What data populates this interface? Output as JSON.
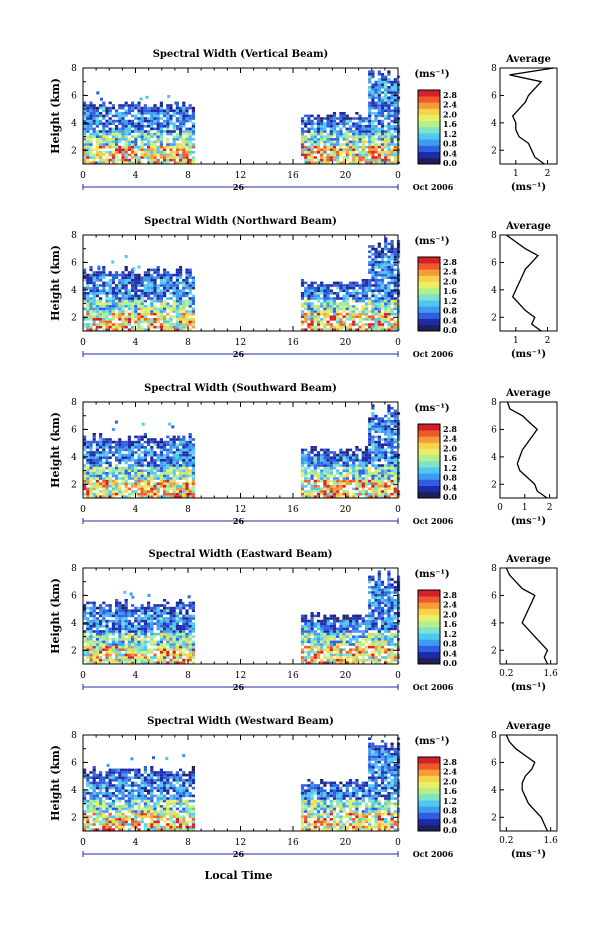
{
  "figure": {
    "bottom_xlabel": "Local Time",
    "units_label": "(ms⁻¹)",
    "date_label": "Oct 2006",
    "day_label": "26",
    "x_tick_labels": [
      "0",
      "4",
      "8",
      "12",
      "16",
      "20",
      "0"
    ],
    "y_tick_labels": [
      "2",
      "4",
      "6",
      "8"
    ],
    "ylabel": "Height (km)",
    "colorbar_ticks": [
      "2.8",
      "2.4",
      "2.0",
      "1.6",
      "1.2",
      "0.8",
      "0.4",
      "0.0"
    ],
    "avg_title": "Average",
    "avg_xlabel": "(ms⁻¹)"
  },
  "chart_data": [
    {
      "type": "heatmap",
      "title": "Spectral Width (Vertical Beam)",
      "xlabel": "",
      "ylabel": "Height (km)",
      "xlim_hours": [
        0,
        24
      ],
      "ylim_km": [
        1,
        8
      ],
      "colorbar_range": [
        0.0,
        3.0
      ],
      "data_segments_hours": [
        [
          0,
          8.4
        ],
        [
          16.6,
          24
        ]
      ],
      "mean_profile": {
        "title": "Average",
        "xtick_labels": [
          "1",
          "2"
        ],
        "xlim": [
          0.5,
          2.3
        ],
        "height_km": [
          1,
          1.5,
          2,
          2.5,
          3,
          3.5,
          4,
          4.5,
          5,
          5.5,
          6,
          6.5,
          7,
          7.5,
          8
        ],
        "width_ms": [
          1.9,
          1.6,
          1.5,
          1.4,
          1.1,
          1.0,
          1.0,
          0.9,
          1.1,
          1.3,
          1.4,
          1.6,
          1.8,
          0.8,
          2.2
        ]
      }
    },
    {
      "type": "heatmap",
      "title": "Spectral Width (Northward Beam)",
      "xlabel": "",
      "ylabel": "Height (km)",
      "xlim_hours": [
        0,
        24
      ],
      "ylim_km": [
        1,
        8
      ],
      "colorbar_range": [
        0.0,
        3.0
      ],
      "data_segments_hours": [
        [
          0,
          8.4
        ],
        [
          16.6,
          24
        ]
      ],
      "mean_profile": {
        "title": "Average",
        "xtick_labels": [
          "1",
          "2"
        ],
        "xlim": [
          0.5,
          2.3
        ],
        "height_km": [
          1,
          1.5,
          2,
          2.5,
          3,
          3.5,
          4,
          4.5,
          5,
          5.5,
          6,
          6.5,
          7,
          7.5,
          8
        ],
        "width_ms": [
          1.8,
          1.5,
          1.6,
          1.3,
          1.1,
          0.9,
          1.0,
          1.1,
          1.2,
          1.3,
          1.5,
          1.7,
          1.3,
          1.0,
          0.7
        ]
      }
    },
    {
      "type": "heatmap",
      "title": "Spectral Width (Southward Beam)",
      "xlabel": "",
      "ylabel": "Height (km)",
      "xlim_hours": [
        0,
        24
      ],
      "ylim_km": [
        1,
        8
      ],
      "colorbar_range": [
        0.0,
        3.0
      ],
      "data_segments_hours": [
        [
          0,
          8.4
        ],
        [
          16.6,
          24
        ]
      ],
      "mean_profile": {
        "title": "Average",
        "xtick_labels": [
          "0",
          "1",
          "2"
        ],
        "xlim": [
          0,
          2.3
        ],
        "height_km": [
          1,
          1.5,
          2,
          2.5,
          3,
          3.5,
          4,
          4.5,
          5,
          5.5,
          6,
          6.5,
          7,
          7.5,
          8
        ],
        "width_ms": [
          1.9,
          1.5,
          1.4,
          1.1,
          0.8,
          0.7,
          0.8,
          0.9,
          1.1,
          1.3,
          1.5,
          1.2,
          0.9,
          0.4,
          0.3
        ]
      }
    },
    {
      "type": "heatmap",
      "title": "Spectral Width (Eastward Beam)",
      "xlabel": "",
      "ylabel": "Height (km)",
      "xlim_hours": [
        0,
        24
      ],
      "ylim_km": [
        1,
        8
      ],
      "colorbar_range": [
        0.0,
        3.0
      ],
      "data_segments_hours": [
        [
          0,
          8.4
        ],
        [
          16.6,
          24
        ]
      ],
      "mean_profile": {
        "title": "Average",
        "xtick_labels": [
          "0.2",
          "1.6"
        ],
        "xlim": [
          0,
          1.8
        ],
        "height_km": [
          1,
          1.5,
          2,
          2.5,
          3,
          3.5,
          4,
          4.5,
          5,
          5.5,
          6,
          6.5,
          7,
          7.5,
          8
        ],
        "width_ms": [
          1.5,
          1.4,
          1.5,
          1.3,
          1.1,
          0.9,
          0.7,
          0.8,
          0.9,
          1.0,
          1.1,
          0.7,
          0.5,
          0.3,
          0.2
        ]
      }
    },
    {
      "type": "heatmap",
      "title": "Spectral Width (Westward Beam)",
      "xlabel": "Local Time",
      "ylabel": "Height (km)",
      "xlim_hours": [
        0,
        24
      ],
      "ylim_km": [
        1,
        8
      ],
      "colorbar_range": [
        0.0,
        3.0
      ],
      "data_segments_hours": [
        [
          0,
          8.4
        ],
        [
          16.6,
          24
        ]
      ],
      "mean_profile": {
        "title": "Average",
        "xtick_labels": [
          "0.2",
          "1.6"
        ],
        "xlim": [
          0,
          1.8
        ],
        "height_km": [
          1,
          1.5,
          2,
          2.5,
          3,
          3.5,
          4,
          4.5,
          5,
          5.5,
          6,
          6.5,
          7,
          7.5,
          8
        ],
        "width_ms": [
          1.5,
          1.4,
          1.3,
          1.1,
          0.9,
          0.8,
          0.7,
          0.7,
          0.8,
          1.0,
          1.1,
          0.8,
          0.5,
          0.3,
          0.2
        ]
      }
    }
  ],
  "colormap": [
    "#1f1f5a",
    "#1e2ba8",
    "#2f5fe0",
    "#3f9bf0",
    "#4ec8f2",
    "#7ee3c8",
    "#b4ef8a",
    "#e8f06a",
    "#f8d24a",
    "#f79a38",
    "#ee5a2c",
    "#d4202a"
  ]
}
